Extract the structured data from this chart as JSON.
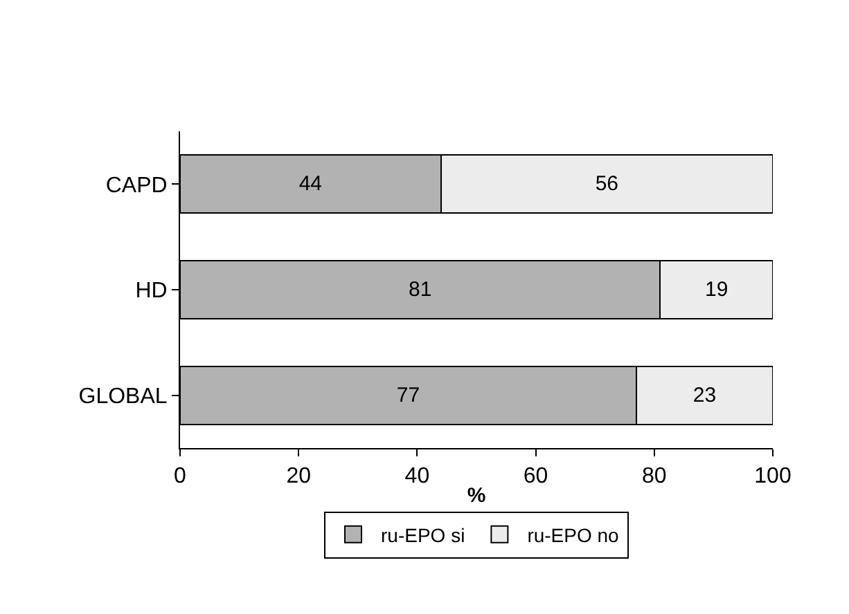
{
  "chart_data": {
    "type": "bar",
    "orientation": "horizontal",
    "stacked": true,
    "categories": [
      "CAPD",
      "HD",
      "GLOBAL"
    ],
    "series": [
      {
        "name": "ru-EPO si",
        "color": "#b2b2b2",
        "values": [
          44,
          81,
          77
        ]
      },
      {
        "name": "ru-EPO no",
        "color": "#ececec",
        "values": [
          56,
          19,
          23
        ]
      }
    ],
    "xlabel": "%",
    "xlim": [
      0,
      100
    ],
    "xticks": [
      0,
      20,
      40,
      60,
      80,
      100
    ],
    "data_labels": true,
    "legend": "bottom"
  }
}
